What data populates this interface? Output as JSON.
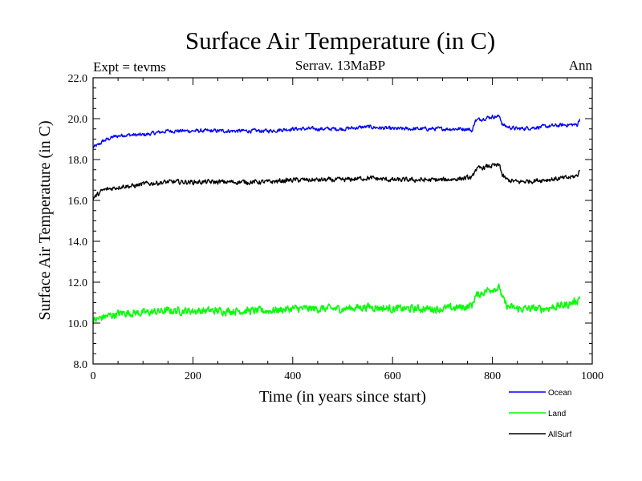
{
  "chart_data": {
    "type": "line",
    "title": "Surface Air Temperature (in C)",
    "subtitle_left": "Expt = tevms",
    "subtitle_center": "Serrav.   13MaBP",
    "subtitle_right": "Ann",
    "xlabel": "Time (in years since start)",
    "ylabel": "Surface Air Temperature (in C)",
    "xlim": [
      0,
      1000
    ],
    "ylim": [
      8.0,
      22.0
    ],
    "xticks": [
      0,
      200,
      400,
      600,
      800,
      1000
    ],
    "xtick_labels": [
      "0",
      "200",
      "400",
      "600",
      "800",
      "1000"
    ],
    "yticks": [
      8.0,
      10.0,
      12.0,
      14.0,
      16.0,
      18.0,
      20.0,
      22.0
    ],
    "ytick_labels": [
      "8.0",
      "10.0",
      "12.0",
      "14.0",
      "16.0",
      "18.0",
      "20.0",
      "22.0"
    ],
    "grid": false,
    "legend_position": "bottom-right",
    "series": [
      {
        "name": "Ocean",
        "color": "#0000ff",
        "x": [
          0,
          10,
          20,
          40,
          60,
          80,
          100,
          150,
          200,
          250,
          300,
          350,
          400,
          450,
          500,
          550,
          600,
          650,
          700,
          750,
          760,
          765,
          780,
          800,
          815,
          820,
          830,
          850,
          900,
          950,
          970,
          975
        ],
        "y": [
          18.6,
          18.7,
          18.9,
          19.1,
          19.2,
          19.2,
          19.2,
          19.4,
          19.4,
          19.4,
          19.4,
          19.4,
          19.5,
          19.5,
          19.5,
          19.6,
          19.5,
          19.5,
          19.5,
          19.5,
          19.4,
          19.9,
          20.0,
          20.1,
          20.1,
          19.7,
          19.6,
          19.5,
          19.6,
          19.7,
          19.7,
          20.0
        ],
        "noise": 0.09
      },
      {
        "name": "Land",
        "color": "#00ff00",
        "x": [
          0,
          10,
          20,
          40,
          60,
          80,
          100,
          150,
          200,
          250,
          300,
          350,
          400,
          450,
          500,
          550,
          600,
          650,
          700,
          750,
          760,
          765,
          780,
          800,
          815,
          820,
          830,
          850,
          900,
          950,
          970,
          975
        ],
        "y": [
          10.1,
          10.2,
          10.3,
          10.4,
          10.5,
          10.5,
          10.5,
          10.6,
          10.6,
          10.6,
          10.6,
          10.6,
          10.7,
          10.7,
          10.7,
          10.8,
          10.7,
          10.7,
          10.7,
          10.8,
          10.9,
          11.3,
          11.5,
          11.7,
          11.7,
          11.2,
          10.8,
          10.7,
          10.7,
          10.9,
          11.1,
          11.3
        ],
        "noise": 0.18
      },
      {
        "name": "AllSurf",
        "color": "#000000",
        "x": [
          0,
          10,
          20,
          40,
          60,
          80,
          100,
          150,
          200,
          250,
          300,
          350,
          400,
          450,
          500,
          550,
          600,
          650,
          700,
          750,
          760,
          765,
          780,
          800,
          815,
          820,
          830,
          850,
          900,
          950,
          970,
          975
        ],
        "y": [
          16.1,
          16.3,
          16.5,
          16.6,
          16.7,
          16.7,
          16.8,
          16.9,
          16.9,
          16.9,
          16.9,
          16.9,
          17.0,
          17.0,
          17.0,
          17.1,
          17.0,
          17.0,
          17.0,
          17.1,
          17.1,
          17.5,
          17.6,
          17.7,
          17.7,
          17.2,
          17.0,
          16.9,
          17.0,
          17.1,
          17.2,
          17.5
        ],
        "noise": 0.11
      }
    ]
  }
}
